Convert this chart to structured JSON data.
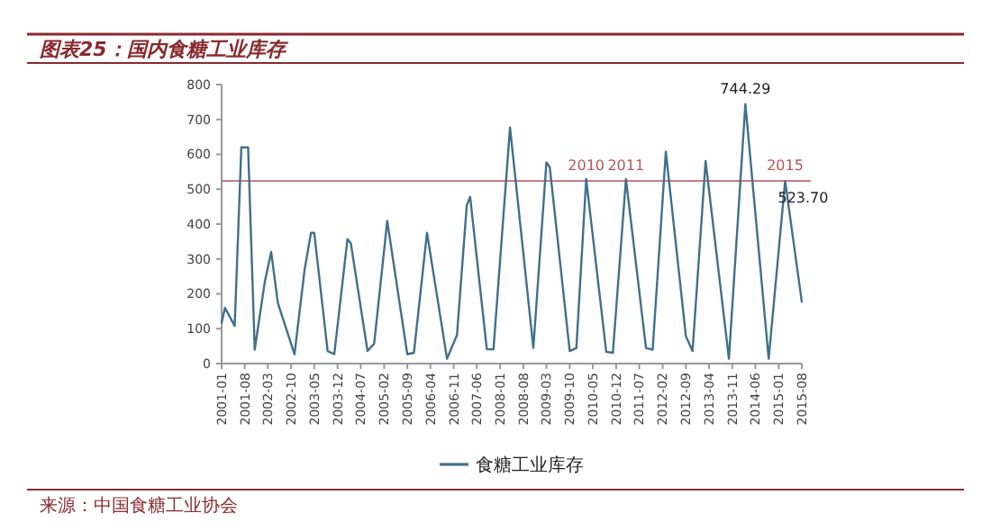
{
  "chart_data": {
    "type": "line",
    "title": "图表25：国内食糖工业库存",
    "x": [
      "2001-01",
      "2001-02",
      "2001-05",
      "2001-07",
      "2001-09",
      "2001-11",
      "2002-02",
      "2002-04",
      "2002-06",
      "2002-11",
      "2003-02",
      "2003-04",
      "2003-05",
      "2003-09",
      "2003-11",
      "2004-03",
      "2004-04",
      "2004-09",
      "2004-11",
      "2005-03",
      "2005-09",
      "2005-11",
      "2006-03",
      "2006-09",
      "2006-12",
      "2007-03",
      "2007-04",
      "2007-09",
      "2007-11",
      "2008-04",
      "2008-11",
      "2009-03",
      "2009-04",
      "2009-10",
      "2009-12",
      "2010-03",
      "2010-09",
      "2010-11",
      "2011-03",
      "2011-09",
      "2011-11",
      "2012-03",
      "2012-09",
      "2012-11",
      "2013-03",
      "2013-10",
      "2014-03",
      "2014-10",
      "2015-03",
      "2015-08"
    ],
    "series": [
      {
        "name": "食糖工业库存",
        "color": "#41708a",
        "values": [
          117,
          160,
          108,
          620,
          620,
          40,
          234,
          320,
          174,
          27,
          268,
          375,
          375,
          36,
          27,
          357,
          345,
          36,
          57,
          409,
          27,
          31,
          375,
          14,
          82,
          454,
          478,
          41,
          41,
          677,
          45,
          577,
          563,
          36,
          45,
          529,
          34,
          31,
          529,
          45,
          40,
          608,
          79,
          36,
          581,
          14,
          744.29,
          14,
          523.7,
          177
        ]
      }
    ],
    "xlim": [
      "2001-01",
      "2015-08"
    ],
    "xticks": [
      "2001-01",
      "2001-08",
      "2002-03",
      "2002-10",
      "2003-05",
      "2003-12",
      "2004-07",
      "2005-02",
      "2005-09",
      "2006-04",
      "2006-11",
      "2007-06",
      "2008-01",
      "2008-08",
      "2009-03",
      "2009-10",
      "2010-05",
      "2010-12",
      "2011-07",
      "2012-02",
      "2012-09",
      "2013-04",
      "2013-11",
      "2014-06",
      "2015-01",
      "2015-08"
    ],
    "ylim": [
      0,
      800
    ],
    "yticks": [
      0,
      100,
      200,
      300,
      400,
      500,
      600,
      700,
      800
    ],
    "grid": false,
    "legend": "bottom",
    "marker": "none",
    "line_style": "solid",
    "ref_lines": [
      {
        "axis": "y",
        "value": 523.7,
        "color": "#b5555a"
      }
    ],
    "annotations": [
      {
        "text": "744.29",
        "x": "2014-03",
        "y": 744.29
      },
      {
        "text": "2010",
        "x": "2010-03",
        "y": 523.7
      },
      {
        "text": "2011",
        "x": "2011-03",
        "y": 523.7
      },
      {
        "text": "2015",
        "x": "2015-03",
        "y": 523.7
      },
      {
        "text": "523.70",
        "x": "2015-03",
        "y": 523.7
      },
      "来源：中国食糖工业协会"
    ]
  }
}
